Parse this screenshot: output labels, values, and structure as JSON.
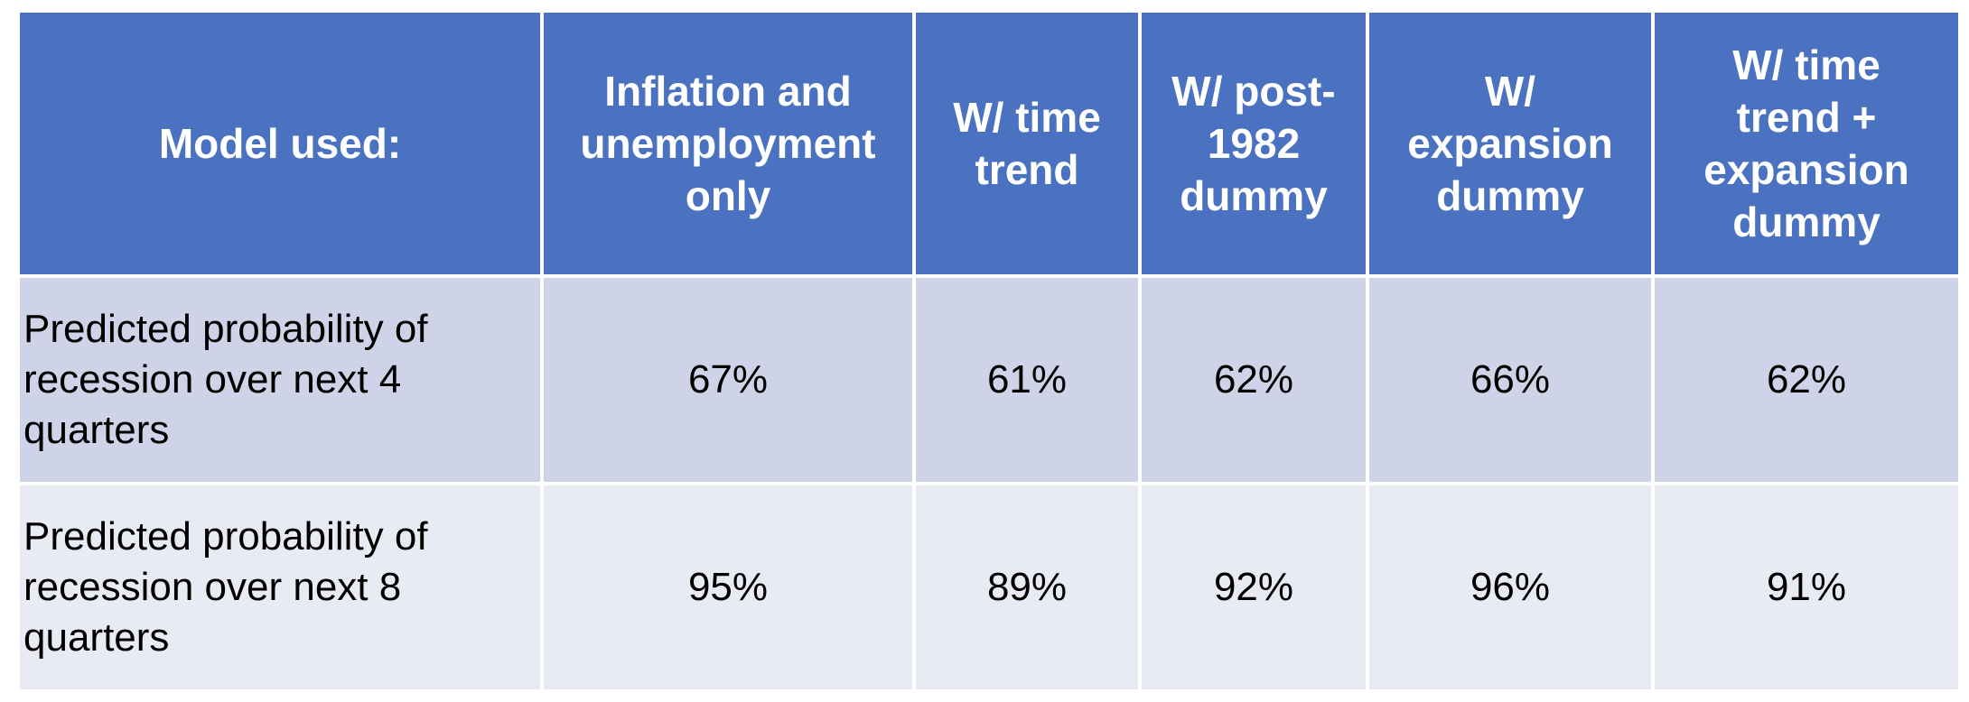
{
  "chart_data": {
    "type": "table",
    "columns": [
      "Model used:",
      "Inflation and\nunemployment\nonly",
      "W/ time\ntrend",
      "W/ post-\n1982\ndummy",
      "W/\nexpansion\ndummy",
      "W/ time\ntrend +\nexpansion\ndummy"
    ],
    "rows": [
      {
        "label": "Predicted probability of\nrecession over next 4\nquarters",
        "values": [
          "67%",
          "61%",
          "62%",
          "66%",
          "62%"
        ]
      },
      {
        "label": "Predicted probability of\nrecession over next 8\nquarters",
        "values": [
          "95%",
          "89%",
          "92%",
          "96%",
          "91%"
        ]
      }
    ],
    "colors": {
      "header_bg": "#4a72c1",
      "row_odd_bg": "#ced3e7",
      "row_even_bg": "#e8eaf4",
      "header_text": "#ffffff",
      "body_text": "#000000"
    }
  }
}
